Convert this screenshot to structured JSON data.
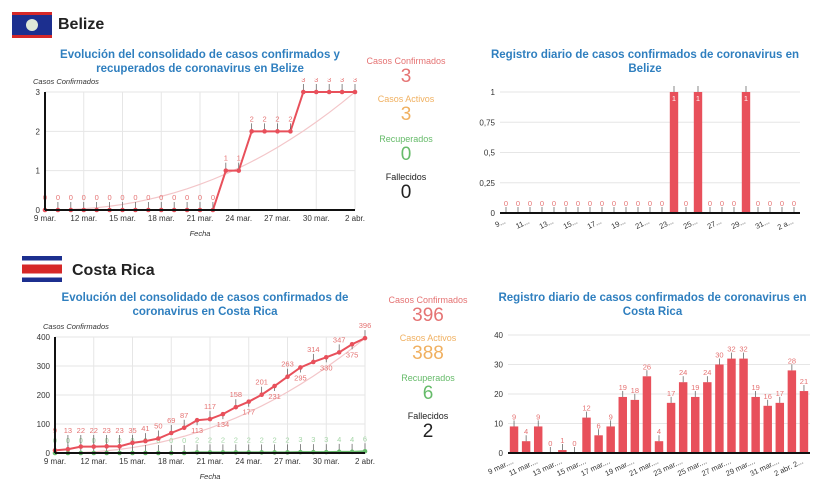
{
  "colors": {
    "confirmed": "#e8505b",
    "label": "#e57373",
    "active": "#f0b060",
    "recovered": "#66bb6a",
    "title": "#2f7fbf"
  },
  "countries": [
    {
      "name": "Belize",
      "cumulative_title": "Evolución del consolidado de casos confirmados y recuperados de coronavirus en Belize",
      "daily_title": "Registro diario de casos confirmados de coronavirus en Belize",
      "stats": {
        "confirmed_label": "Casos Confirmados",
        "confirmed": "3",
        "active_label": "Casos Activos",
        "active": "3",
        "recovered_label": "Recuperados",
        "recovered": "0",
        "deaths_label": "Fallecidos",
        "deaths": "0"
      }
    },
    {
      "name": "Costa Rica",
      "cumulative_title": "Evolución del consolidado de casos confirmados de coronavirus en Costa Rica",
      "daily_title": "Registro diario de casos confirmados de coronavirus en Costa Rica",
      "stats": {
        "confirmed_label": "Casos Confirmados",
        "confirmed": "396",
        "active_label": "Casos Activos",
        "active": "388",
        "recovered_label": "Recuperados",
        "recovered": "6",
        "deaths_label": "Fallecidos",
        "deaths": "2"
      }
    }
  ],
  "chart_data": [
    {
      "type": "line",
      "title": "Evolución del consolidado de casos confirmados y recuperados de coronavirus en Belize",
      "ylabel": "Casos Confirmados",
      "xlabel": "Fecha",
      "ylim": [
        0,
        3
      ],
      "yticks": [
        "0",
        "1",
        "2",
        "3"
      ],
      "xticks": [
        "9 mar.",
        "12 mar.",
        "15 mar.",
        "18 mar.",
        "21 mar.",
        "24 mar.",
        "27 mar.",
        "30 mar.",
        "2 abr."
      ],
      "series": [
        {
          "name": "Confirmados",
          "values": [
            0,
            0,
            0,
            0,
            0,
            0,
            0,
            0,
            0,
            0,
            0,
            0,
            0,
            0,
            1,
            1,
            2,
            2,
            2,
            2,
            3,
            3,
            3,
            3,
            3
          ]
        }
      ]
    },
    {
      "type": "bar",
      "title": "Registro diario de casos confirmados de coronavirus en Belize",
      "ylim": [
        0,
        1
      ],
      "yticks": [
        "0",
        "0,25",
        "0,5",
        "0,75",
        "1"
      ],
      "xticks": [
        "9...",
        "11...",
        "13...",
        "15...",
        "17...",
        "19...",
        "21...",
        "23...",
        "25...",
        "27...",
        "29...",
        "31...",
        "2 a..."
      ],
      "values": [
        0,
        0,
        0,
        0,
        0,
        0,
        0,
        0,
        0,
        0,
        0,
        0,
        0,
        0,
        1,
        0,
        1,
        0,
        0,
        0,
        1,
        0,
        0,
        0,
        0
      ]
    },
    {
      "type": "line",
      "title": "Evolución del consolidado de casos confirmados de coronavirus en Costa Rica",
      "ylabel": "Casos Confirmados",
      "xlabel": "Fecha",
      "ylim": [
        0,
        400
      ],
      "yticks": [
        "0",
        "100",
        "200",
        "300",
        "400"
      ],
      "xticks": [
        "9 mar.",
        "12 mar.",
        "15 mar.",
        "18 mar.",
        "21 mar.",
        "24 mar.",
        "27 mar.",
        "30 mar.",
        "2 abr."
      ],
      "series": [
        {
          "name": "Confirmados",
          "values": [
            9,
            13,
            22,
            22,
            23,
            23,
            35,
            41,
            50,
            69,
            87,
            113,
            117,
            134,
            158,
            177,
            201,
            231,
            263,
            295,
            314,
            330,
            347,
            375,
            396
          ]
        },
        {
          "name": "Recuperados",
          "values": [
            0,
            0,
            0,
            0,
            0,
            0,
            0,
            0,
            0,
            0,
            0,
            2,
            2,
            2,
            2,
            2,
            2,
            2,
            2,
            3,
            3,
            3,
            4,
            4,
            6
          ]
        }
      ]
    },
    {
      "type": "bar",
      "title": "Registro diario de casos confirmados de coronavirus en Costa Rica",
      "ylim": [
        0,
        40
      ],
      "yticks": [
        "0",
        "10",
        "20",
        "30",
        "40"
      ],
      "xticks": [
        "9 mar....",
        "11 mar....",
        "13 mar....",
        "15 mar....",
        "17 mar....",
        "19 mar....",
        "21 mar....",
        "23 mar....",
        "25 mar....",
        "27 mar....",
        "29 mar....",
        "31 mar....",
        "2 abr. 2..."
      ],
      "values": [
        9,
        4,
        9,
        0,
        1,
        0,
        12,
        6,
        9,
        19,
        18,
        26,
        4,
        17,
        24,
        19,
        24,
        30,
        32,
        32,
        19,
        16,
        17,
        28,
        21
      ]
    }
  ]
}
